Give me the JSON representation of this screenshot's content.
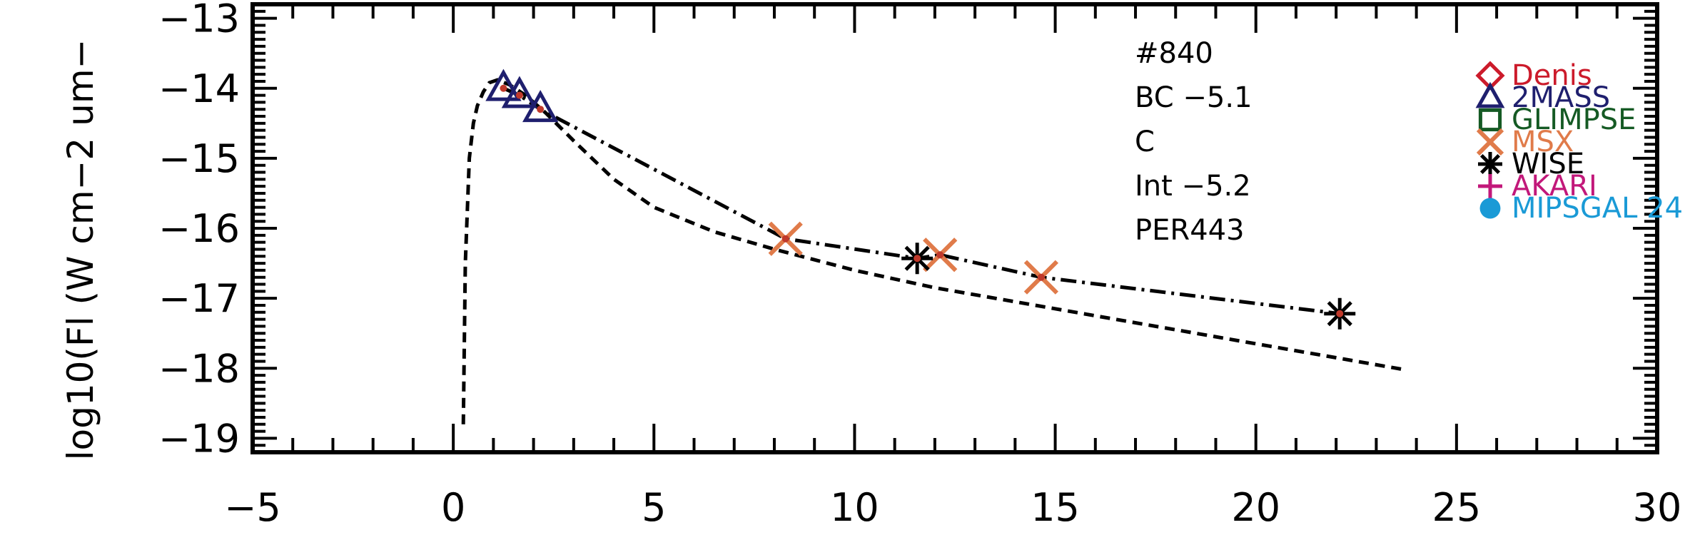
{
  "chart_data": {
    "type": "scatter",
    "ylabel": "log10(Fl (W cm−2 um−",
    "xlim": [
      -5,
      30
    ],
    "ylim": [
      -19.2,
      -12.8
    ],
    "x_ticks": [
      "−5",
      "0",
      "5",
      "10",
      "15",
      "20",
      "25",
      "30"
    ],
    "y_ticks": [
      "−13",
      "−14",
      "−15",
      "−16",
      "−17",
      "−18",
      "−19"
    ],
    "annotations": [
      "#840",
      "BC −5.1",
      "C",
      "Int −5.2",
      "PER443"
    ],
    "legend": {
      "placement": "right",
      "entries": [
        {
          "label": "Denis",
          "marker": "diamond",
          "color": "#cc1b2b"
        },
        {
          "label": "2MASS",
          "marker": "triangle",
          "color": "#1f1f6e"
        },
        {
          "label": "GLIMPSE",
          "marker": "square",
          "color": "#155a24"
        },
        {
          "label": "MSX",
          "marker": "x",
          "color": "#e07b4a"
        },
        {
          "label": "WISE",
          "marker": "asterisk",
          "color": "#000000"
        },
        {
          "label": "AKARI",
          "marker": "plus",
          "color": "#c2187a"
        },
        {
          "label": "MIPSGAL 24",
          "marker": "circle",
          "color": "#1a9ad6"
        }
      ]
    },
    "series": [
      {
        "survey": "2MASS",
        "marker": "triangle",
        "color": "#1f1f6e",
        "x": [
          1.25,
          1.65,
          2.17
        ],
        "y": [
          -14.0,
          -14.1,
          -14.3
        ]
      },
      {
        "survey": "MSX",
        "marker": "x",
        "color": "#e07b4a",
        "x": [
          8.28,
          12.13,
          14.65
        ],
        "y": [
          -16.15,
          -16.38,
          -16.7
        ]
      },
      {
        "survey": "WISE",
        "marker": "asterisk",
        "color": "#000000",
        "x": [
          11.56,
          22.09
        ],
        "y": [
          -16.43,
          -17.22
        ]
      }
    ],
    "measured_points": {
      "x": [
        1.25,
        1.65,
        2.17,
        8.28,
        11.56,
        12.13,
        14.65,
        22.09
      ],
      "y": [
        -14.0,
        -14.1,
        -14.3,
        -16.15,
        -16.43,
        -16.38,
        -16.7,
        -17.22
      ]
    },
    "curves": [
      {
        "style": "dash-dot",
        "x": [
          1.25,
          1.65,
          2.17,
          8.28,
          11.56,
          12.13,
          14.65,
          22.09
        ],
        "y": [
          -14.0,
          -14.1,
          -14.3,
          -16.15,
          -16.43,
          -16.38,
          -16.7,
          -17.22
        ]
      },
      {
        "style": "dashed",
        "x": [
          0.25,
          0.3,
          0.4,
          0.5,
          0.6,
          0.75,
          0.9,
          1.1,
          1.4,
          1.8,
          2.3,
          3,
          4,
          5,
          6.5,
          8,
          10,
          12,
          14,
          16,
          18,
          20,
          22,
          23.7
        ],
        "y": [
          -18.8,
          -16.5,
          -15.0,
          -14.5,
          -14.25,
          -14.05,
          -13.92,
          -13.88,
          -13.95,
          -14.1,
          -14.35,
          -14.75,
          -15.3,
          -15.7,
          -16.05,
          -16.3,
          -16.6,
          -16.85,
          -17.05,
          -17.25,
          -17.45,
          -17.65,
          -17.85,
          -18.02
        ]
      }
    ]
  }
}
